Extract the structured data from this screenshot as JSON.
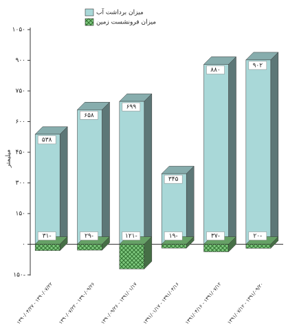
{
  "chart_data": {
    "type": "bar",
    "y_label": "میلیمتر",
    "categories": [
      "۱۳۹۰/۰۴/۲۷ - ۱۳۹۰/۰۷/۲۲",
      "۱۳۹۰/۰۷/۲۲ - ۱۳۹۰/۰۹/۲۶",
      "۱۳۹۰/۰۹/۲۶ - ۱۳۹۱/۰۱/۱۷",
      "۱۳۹۱/۰۱/۱۷ - ۱۳۹۱/۰۴/۱۶",
      "۱۳۹۱/۰۴/۱۶ - ۱۳۹۱/۰۷/۱۲",
      "۱۳۹۱/۰۷/۱۲ - ۱۳۹۱/۰۹/۲۰"
    ],
    "series": [
      {
        "name": "میزان برداشت آب",
        "color": "#a9d8d8",
        "values": [
          538,
          658,
          699,
          345,
          880,
          902
        ],
        "value_labels": [
          "۵۳۸",
          "۶۵۸",
          "۶۹۹",
          "۳۴۵",
          "۸۸۰",
          "۹۰۲"
        ]
      },
      {
        "name": "میزان فرونشست زمین",
        "color": "#7fc97f",
        "values": [
          -31,
          -29,
          -121,
          -19,
          -37,
          -20
        ],
        "value_labels": [
          "۳۱-",
          "۲۹-",
          "۱۲۱-",
          "۱۹-",
          "۳۷-",
          "۲۰-"
        ]
      }
    ],
    "ylim": [
      -150,
      1050
    ],
    "yticks": [
      {
        "value": -150,
        "label": "۱۵۰-"
      },
      {
        "value": 0,
        "label": "۰"
      },
      {
        "value": 150,
        "label": "۱۵۰"
      },
      {
        "value": 300,
        "label": "۳۰۰"
      },
      {
        "value": 450,
        "label": "۴۵۰"
      },
      {
        "value": 600,
        "label": "۶۰۰"
      },
      {
        "value": 750,
        "label": "۷۵۰"
      },
      {
        "value": 900,
        "label": "۹۰۰"
      },
      {
        "value": 1050,
        "label": "۱۰۵۰"
      }
    ]
  }
}
